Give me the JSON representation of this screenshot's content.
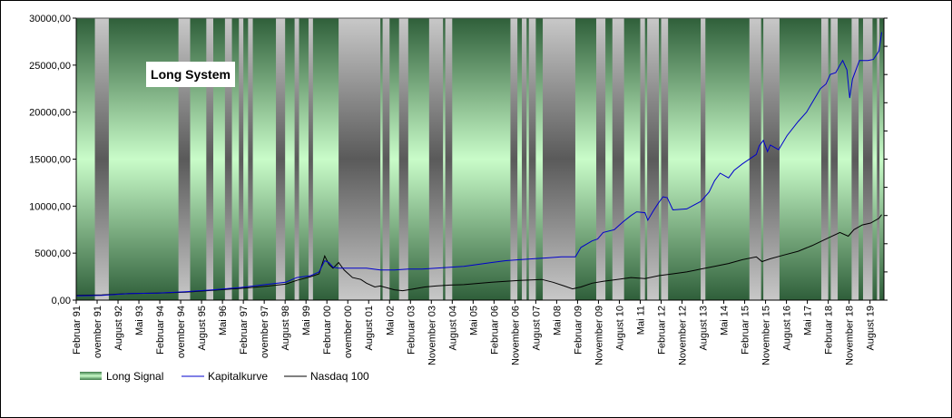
{
  "chart_data": {
    "type": "line",
    "title": "Long System",
    "xlabel": "",
    "ylabel": "",
    "x_range": [
      1991.08,
      2020.08
    ],
    "ylim": [
      0,
      30000
    ],
    "y_ticks": [
      "0,00",
      "5000,00",
      "10000,00",
      "15000,00",
      "20000,00",
      "25000,00",
      "30000,00"
    ],
    "y_tick_values": [
      0,
      5000,
      10000,
      15000,
      20000,
      25000,
      30000
    ],
    "x_tick_labels": [
      "Februar 91",
      "ovember 91",
      "August 92",
      "Mai 93",
      "Februar 94",
      "ovember 94",
      "August 95",
      "Mai 96",
      "Februar 97",
      "ovember 97",
      "August 98",
      "Mai 99",
      "Februar 00",
      "ovember 00",
      "August 01",
      "Mai 02",
      "Februar 03",
      "November 03",
      "August 04",
      "Mai 05",
      "Februar 06",
      "November 06",
      "August 07",
      "Mai 08",
      "Februar 09",
      "November 09",
      "August 10",
      "Mai 11",
      "Februar 12",
      "November 12",
      "August 13",
      "Mai 14",
      "Februar 15",
      "November 15",
      "August 16",
      "Mai 17",
      "Februar 18",
      "November 18",
      "August 19"
    ],
    "grid": false,
    "legend_placement": "bottom-left",
    "legend": [
      "Long Signal",
      "Kapitalkurve",
      "Nasdaq 100"
    ],
    "colors": {
      "long_signal": "#7fc98a",
      "kapitalkurve": "#0000cc",
      "nasdaq": "#000000",
      "flat_band": "#8c8c8c"
    },
    "long_signal_periods": [
      [
        1991.08,
        1991.75
      ],
      [
        1992.25,
        1994.75
      ],
      [
        1995.17,
        1995.75
      ],
      [
        1996.0,
        1996.42
      ],
      [
        1996.67,
        1996.92
      ],
      [
        1997.08,
        1997.25
      ],
      [
        1997.42,
        1998.25
      ],
      [
        1998.58,
        1998.92
      ],
      [
        1999.08,
        1999.42
      ],
      [
        1999.58,
        2000.5
      ],
      [
        2002.0,
        2002.08
      ],
      [
        2002.33,
        2002.67
      ],
      [
        2003.0,
        2003.75
      ],
      [
        2004.25,
        2004.33
      ],
      [
        2004.58,
        2006.67
      ],
      [
        2006.92,
        2007.08
      ],
      [
        2007.25,
        2007.33
      ],
      [
        2007.58,
        2007.83
      ],
      [
        2009.0,
        2009.75
      ],
      [
        2010.08,
        2010.33
      ],
      [
        2010.75,
        2011.33
      ],
      [
        2011.5,
        2011.58
      ],
      [
        2012.0,
        2012.08
      ],
      [
        2012.33,
        2013.5
      ],
      [
        2013.67,
        2015.25
      ],
      [
        2015.67,
        2015.75
      ],
      [
        2016.33,
        2017.83
      ],
      [
        2018.08,
        2018.17
      ],
      [
        2018.42,
        2018.92
      ],
      [
        2019.17,
        2019.33
      ],
      [
        2019.67,
        2019.83
      ],
      [
        2019.92,
        2020.08
      ]
    ],
    "series": [
      {
        "name": "Kapitalkurve",
        "x": [
          1991.1,
          1992,
          1993,
          1994,
          1995,
          1996,
          1997,
          1998,
          1998.6,
          1999,
          1999.5,
          1999.8,
          2000.0,
          2000.15,
          2000.3,
          2000.5,
          2001,
          2001.5,
          2002,
          2002.5,
          2003,
          2003.5,
          2004,
          2004.5,
          2005,
          2005.5,
          2006,
          2006.5,
          2007,
          2007.5,
          2008,
          2008.5,
          2009.0,
          2009.2,
          2009.6,
          2009.8,
          2010,
          2010.4,
          2010.7,
          2011,
          2011.2,
          2011.5,
          2011.6,
          2011.8,
          2012,
          2012.15,
          2012.3,
          2012.5,
          2013,
          2013.5,
          2013.8,
          2014,
          2014.2,
          2014.5,
          2014.7,
          2015,
          2015.5,
          2015.6,
          2015.75,
          2015.9,
          2016,
          2016.3,
          2016.6,
          2017,
          2017.3,
          2017.6,
          2017.8,
          2018,
          2018.15,
          2018.35,
          2018.5,
          2018.6,
          2018.75,
          2018.85,
          2018.95,
          2019.2,
          2019.5,
          2019.7,
          2019.9,
          2020.0
        ],
        "y": [
          450,
          500,
          700,
          750,
          900,
          1100,
          1350,
          1700,
          1900,
          2400,
          2600,
          3000,
          4200,
          4000,
          3500,
          3400,
          3400,
          3400,
          3200,
          3200,
          3300,
          3300,
          3400,
          3500,
          3600,
          3800,
          4000,
          4200,
          4300,
          4400,
          4500,
          4600,
          4600,
          5600,
          6300,
          6500,
          7200,
          7500,
          8300,
          9000,
          9400,
          9300,
          8500,
          9500,
          10400,
          11000,
          10900,
          9600,
          9700,
          10500,
          11500,
          12700,
          13500,
          13000,
          13800,
          14500,
          15500,
          16400,
          17000,
          15800,
          16500,
          16000,
          17500,
          19000,
          20000,
          21500,
          22500,
          23000,
          24000,
          24200,
          25000,
          25500,
          24500,
          21500,
          23500,
          25500,
          25500,
          25600,
          26500,
          28500
        ]
      },
      {
        "name": "Nasdaq 100",
        "x": [
          1991.1,
          1992,
          1993,
          1994,
          1995,
          1996,
          1997,
          1998,
          1998.6,
          1999,
          1999.5,
          1999.8,
          2000.0,
          2000.15,
          2000.3,
          2000.5,
          2000.7,
          2001,
          2001.3,
          2001.5,
          2001.8,
          2002,
          2002.5,
          2002.8,
          2003.2,
          2003.6,
          2004,
          2004.5,
          2005,
          2006,
          2007,
          2007.8,
          2008.2,
          2008.6,
          2008.9,
          2009.2,
          2009.6,
          2010,
          2010.5,
          2011,
          2011.5,
          2012,
          2012.5,
          2013,
          2013.5,
          2014,
          2014.5,
          2015,
          2015.5,
          2015.7,
          2016,
          2016.5,
          2017,
          2017.5,
          2018,
          2018.5,
          2018.8,
          2019,
          2019.3,
          2019.6,
          2019.9,
          2020.0
        ],
        "y": [
          500,
          550,
          700,
          750,
          850,
          1050,
          1250,
          1500,
          1700,
          2100,
          2500,
          2800,
          4700,
          3800,
          3400,
          4000,
          3200,
          2400,
          2200,
          1800,
          1400,
          1500,
          1100,
          1000,
          1200,
          1400,
          1500,
          1600,
          1650,
          1900,
          2100,
          2200,
          1900,
          1500,
          1200,
          1400,
          1800,
          2000,
          2200,
          2400,
          2300,
          2600,
          2800,
          3000,
          3300,
          3600,
          3900,
          4300,
          4600,
          4100,
          4400,
          4800,
          5200,
          5800,
          6500,
          7200,
          6800,
          7500,
          8000,
          8200,
          8700,
          9100
        ]
      }
    ]
  }
}
